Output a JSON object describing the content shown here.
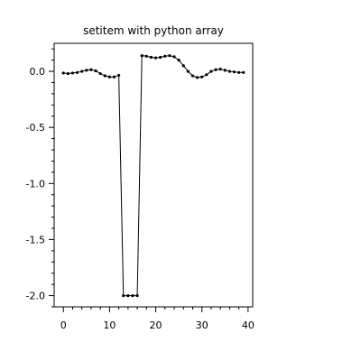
{
  "chart_data": {
    "type": "line",
    "title": "setitem with python array",
    "xlabel": "",
    "ylabel": "",
    "xlim": [
      -2,
      41
    ],
    "ylim": [
      -2.1,
      0.25
    ],
    "xticks": [
      0,
      10,
      20,
      30,
      40
    ],
    "yticks": [
      0.0,
      -0.5,
      -1.0,
      -1.5,
      -2.0
    ],
    "xtick_labels": [
      "0",
      "10",
      "20",
      "30",
      "40"
    ],
    "ytick_labels": [
      "0.0",
      "-0.5",
      "-1.0",
      "-1.5",
      "-2.0"
    ],
    "grid": false,
    "legend": "none",
    "line_color": "#000000",
    "marker": "dot",
    "series": [
      {
        "x": [
          0,
          1,
          2,
          3,
          4,
          5,
          6,
          7,
          8,
          9,
          10,
          11,
          12,
          13,
          14,
          15,
          16,
          17,
          18,
          19,
          20,
          21,
          22,
          23,
          24,
          25,
          26,
          27,
          28,
          29,
          30,
          31,
          32,
          33,
          34,
          35,
          36,
          37,
          38,
          39
        ],
        "values": [
          -0.015,
          -0.02,
          -0.015,
          -0.01,
          0.0,
          0.01,
          0.015,
          0.005,
          -0.02,
          -0.04,
          -0.05,
          -0.05,
          -0.035,
          -2.0,
          -2.0,
          -2.0,
          -2.0,
          0.14,
          0.135,
          0.125,
          0.12,
          0.125,
          0.135,
          0.14,
          0.13,
          0.1,
          0.05,
          0.0,
          -0.04,
          -0.055,
          -0.05,
          -0.03,
          0.0,
          0.015,
          0.02,
          0.01,
          0.0,
          -0.005,
          -0.01,
          -0.01
        ]
      }
    ]
  }
}
